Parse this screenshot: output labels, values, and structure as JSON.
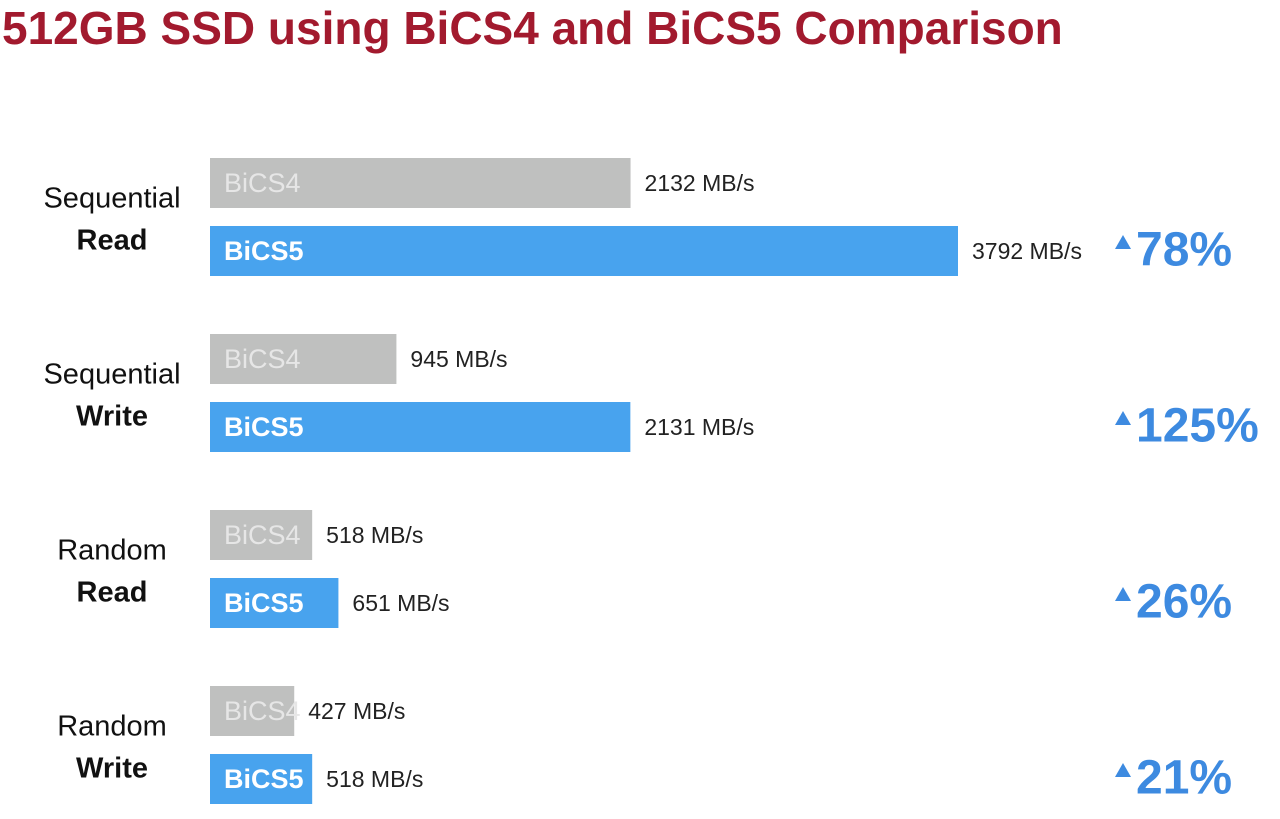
{
  "chart_data": {
    "type": "bar",
    "orientation": "horizontal",
    "title": "512GB SSD using BiCS4 and BiCS5 Comparison",
    "categories": [
      [
        "Sequential",
        "Read"
      ],
      [
        "Sequential",
        "Write"
      ],
      [
        "Random",
        "Read"
      ],
      [
        "Random",
        "Write"
      ]
    ],
    "series": [
      {
        "name": "BiCS4",
        "color": "#bfc0bf",
        "values": [
          2132,
          945,
          518,
          427
        ],
        "value_labels": [
          "2132 MB/s",
          "945 MB/s",
          "518 MB/s",
          "427 MB/s"
        ]
      },
      {
        "name": "BiCS5",
        "color": "#48a3ee",
        "values": [
          3792,
          2131,
          651,
          518
        ],
        "value_labels": [
          "3792 MB/s",
          "2131 MB/s",
          "651 MB/s",
          "518 MB/s"
        ]
      }
    ],
    "improvement": {
      "color": "#3d8ae0",
      "values": [
        78,
        125,
        26,
        21
      ],
      "value_labels": [
        "78%",
        "125%",
        "26%",
        "21%"
      ]
    }
  }
}
